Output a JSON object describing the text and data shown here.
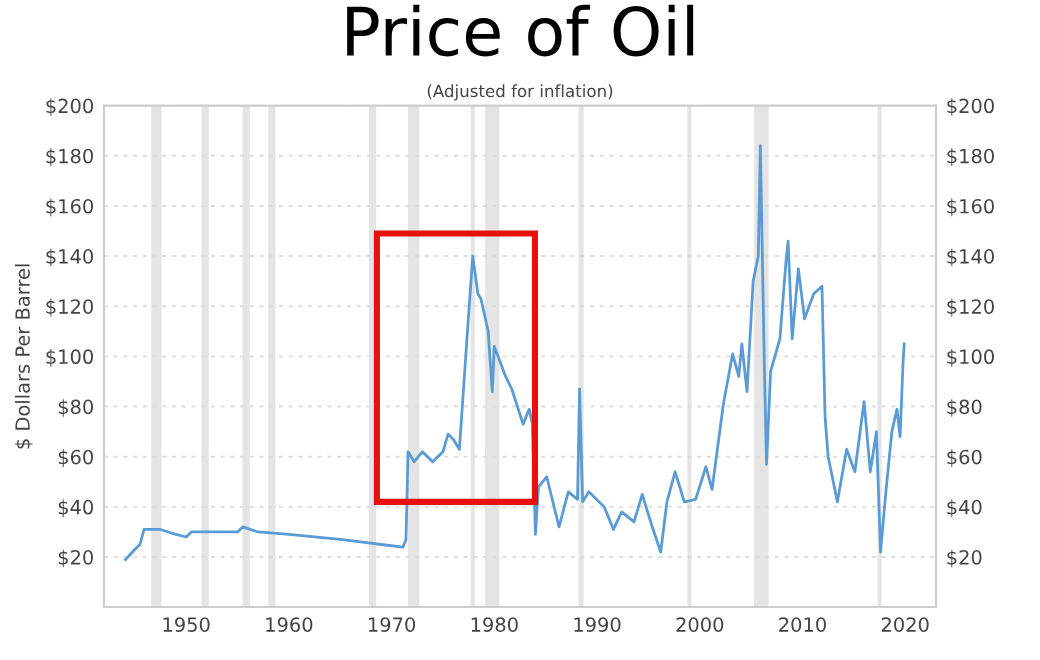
{
  "chart_data": {
    "type": "line",
    "title": "Price of Oil",
    "subtitle": "(Adjusted for inflation)",
    "ylabel": "$ Dollars Per Barrel",
    "series": [
      {
        "color": "#5b9bd5",
        "x": [
          1944.1,
          1945.0,
          1945.5,
          1945.9,
          1947.5,
          1949.0,
          1950.0,
          1950.5,
          1955.0,
          1955.5,
          1957.0,
          1960.0,
          1965.0,
          1967.0,
          1969.0,
          1971.1,
          1971.4,
          1971.6,
          1972.2,
          1973.0,
          1974.0,
          1975.0,
          1975.5,
          1976.0,
          1976.6,
          1977.3,
          1977.9,
          1978.4,
          1978.7,
          1979.4,
          1979.8,
          1980.0,
          1981.1,
          1981.7,
          1982.8,
          1983.4,
          1983.7,
          1984.0,
          1984.3,
          1985.1,
          1986.3,
          1987.2,
          1988.1,
          1988.3,
          1988.6,
          1989.2,
          1990.7,
          1991.6,
          1992.4,
          1993.6,
          1994.4,
          1995.3,
          1996.2,
          1996.8,
          1997.6,
          1998.5,
          1999.6,
          2000.6,
          2001.2,
          2002.3,
          2003.2,
          2003.8,
          2004.1,
          2004.6,
          2005.2,
          2005.7,
          2005.9,
          2006.3,
          2006.5,
          2006.9,
          2007.8,
          2008.4,
          2008.6,
          2009.0,
          2009.6,
          2010.2,
          2011.1,
          2011.9,
          2012.2,
          2012.5,
          2013.4,
          2014.3,
          2015.1,
          2016.0,
          2016.6,
          2017.2,
          2017.6,
          2018.1,
          2018.7,
          2019.2,
          2019.5,
          2019.8,
          2019.9
        ],
        "values": [
          19,
          23,
          25,
          31,
          31,
          29,
          28,
          30,
          30,
          32,
          30,
          29,
          27,
          26,
          25,
          24,
          27,
          62,
          58,
          62,
          58,
          62,
          69,
          67,
          63,
          105,
          140,
          125,
          123,
          110,
          86,
          104,
          92,
          87,
          73,
          79,
          73,
          29,
          48,
          52,
          32,
          46,
          43,
          87,
          42,
          46,
          40,
          31,
          38,
          34,
          45,
          33,
          22,
          42,
          54,
          42,
          43,
          56,
          47,
          81,
          101,
          92,
          105,
          86,
          130,
          140,
          184,
          94,
          57,
          94,
          107,
          138,
          146,
          107,
          135,
          115,
          125,
          128,
          76,
          60,
          42,
          63,
          54,
          82,
          54,
          70,
          22,
          45,
          70,
          79,
          68,
          98,
          105
        ]
      }
    ],
    "xlim": [
      1942,
      2023
    ],
    "xticks": [
      1950,
      1960,
      1970,
      1980,
      1990,
      2000,
      2010,
      2020
    ],
    "ylim": [
      0,
      200
    ],
    "yticks": [
      {
        "value": 0,
        "label": null
      },
      {
        "value": 20,
        "label": "$20"
      },
      {
        "value": 40,
        "label": "$40"
      },
      {
        "value": 60,
        "label": "$60"
      },
      {
        "value": 80,
        "label": "$80"
      },
      {
        "value": 100,
        "label": "$100"
      },
      {
        "value": 120,
        "label": "$120"
      },
      {
        "value": 140,
        "label": "$140"
      },
      {
        "value": 160,
        "label": "$160"
      },
      {
        "value": 180,
        "label": "$180"
      },
      {
        "value": 200,
        "label": "$200"
      }
    ],
    "y2lim": [
      0,
      200
    ],
    "y2ticks": [
      {
        "value": 0,
        "label": null
      },
      {
        "value": 20,
        "label": "$20"
      },
      {
        "value": 40,
        "label": "$40"
      },
      {
        "value": 60,
        "label": "$60"
      },
      {
        "value": 80,
        "label": "$80"
      },
      {
        "value": 100,
        "label": "$100"
      },
      {
        "value": 120,
        "label": "$120"
      },
      {
        "value": 140,
        "label": "$140"
      },
      {
        "value": 160,
        "label": "$160"
      },
      {
        "value": 180,
        "label": "$180"
      },
      {
        "value": 200,
        "label": "$200"
      }
    ],
    "bands": [
      {
        "axis": "x",
        "from": 1946.6,
        "to": 1947.6,
        "color": "#e4e4e4"
      },
      {
        "axis": "x",
        "from": 1951.5,
        "to": 1952.2,
        "color": "#e4e4e4"
      },
      {
        "axis": "x",
        "from": 1955.5,
        "to": 1956.2,
        "color": "#e4e4e4"
      },
      {
        "axis": "x",
        "from": 1958.0,
        "to": 1958.7,
        "color": "#e4e4e4"
      },
      {
        "axis": "x",
        "from": 1967.8,
        "to": 1968.5,
        "color": "#e4e4e4"
      },
      {
        "axis": "x",
        "from": 1971.6,
        "to": 1972.7,
        "color": "#e4e4e4"
      },
      {
        "axis": "x",
        "from": 1977.7,
        "to": 1978.1,
        "color": "#e4e4e4"
      },
      {
        "axis": "x",
        "from": 1979.1,
        "to": 1980.5,
        "color": "#e4e4e4"
      },
      {
        "axis": "x",
        "from": 1988.2,
        "to": 1988.7,
        "color": "#e4e4e4"
      },
      {
        "axis": "x",
        "from": 1998.8,
        "to": 1999.2,
        "color": "#e4e4e4"
      },
      {
        "axis": "x",
        "from": 2005.3,
        "to": 2006.7,
        "color": "#e4e4e4"
      },
      {
        "axis": "x",
        "from": 2017.3,
        "to": 2017.7,
        "color": "#e4e4e4"
      }
    ],
    "grid": "y",
    "legend": false,
    "marker": "none",
    "line_style": "solid"
  }
}
